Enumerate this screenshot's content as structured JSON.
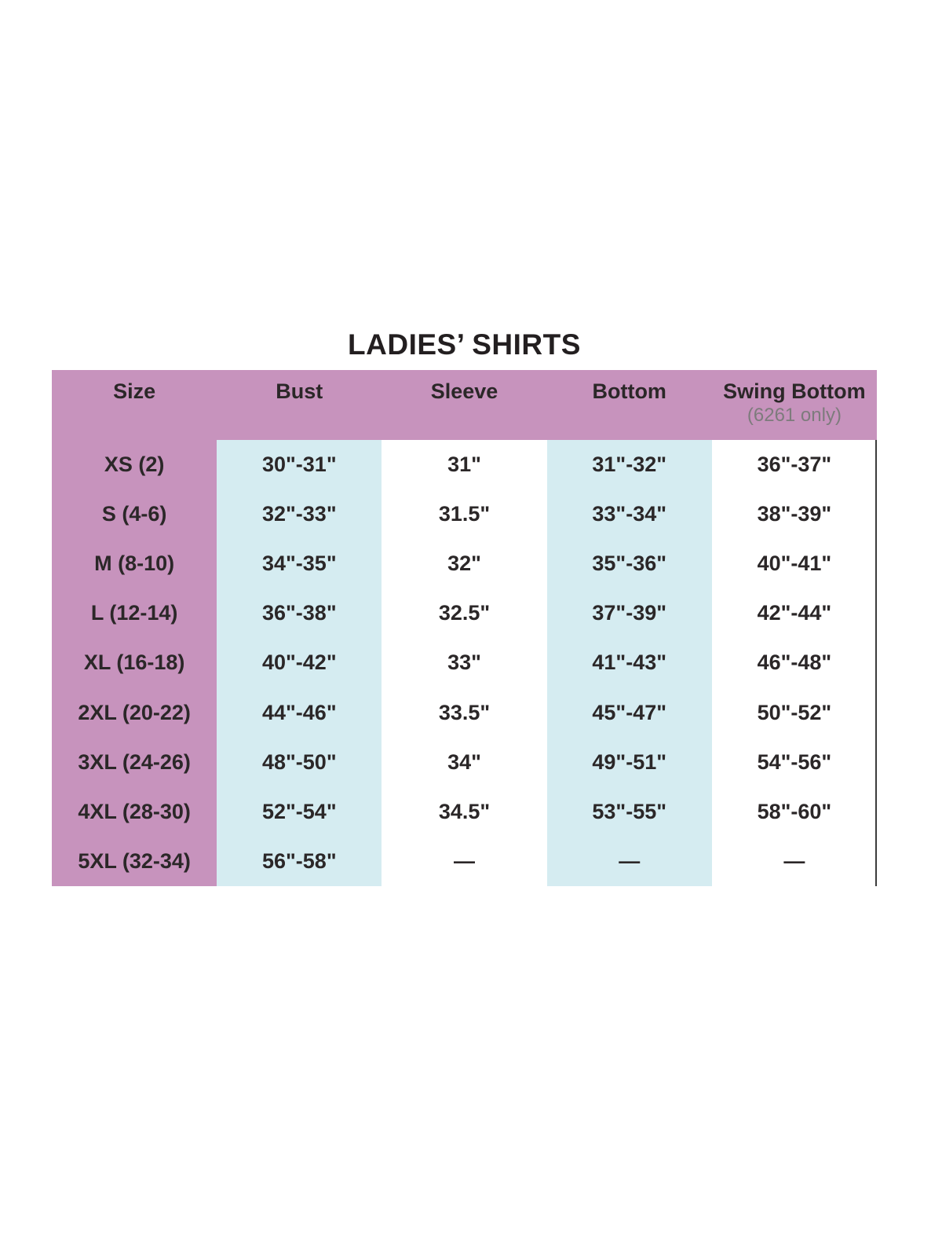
{
  "title": "LADIES’ SHIRTS",
  "chart_data": {
    "type": "table",
    "title": "LADIES’ SHIRTS",
    "columns": [
      {
        "label": "Size",
        "sublabel": ""
      },
      {
        "label": "Bust",
        "sublabel": ""
      },
      {
        "label": "Sleeve",
        "sublabel": ""
      },
      {
        "label": "Bottom",
        "sublabel": ""
      },
      {
        "label": "Swing Bottom",
        "sublabel": "(6261 only)"
      }
    ],
    "rows": [
      [
        "XS (2)",
        "30\"-31\"",
        "31\"",
        "31\"-32\"",
        "36\"-37\""
      ],
      [
        "S (4-6)",
        "32\"-33\"",
        "31.5\"",
        "33\"-34\"",
        "38\"-39\""
      ],
      [
        "M (8-10)",
        "34\"-35\"",
        "32\"",
        "35\"-36\"",
        "40\"-41\""
      ],
      [
        "L (12-14)",
        "36\"-38\"",
        "32.5\"",
        "37\"-39\"",
        "42\"-44\""
      ],
      [
        "XL (16-18)",
        "40\"-42\"",
        "33\"",
        "41\"-43\"",
        "46\"-48\""
      ],
      [
        "2XL (20-22)",
        "44\"-46\"",
        "33.5\"",
        "45\"-47\"",
        "50\"-52\""
      ],
      [
        "3XL (24-26)",
        "48\"-50\"",
        "34\"",
        "49\"-51\"",
        "54\"-56\""
      ],
      [
        "4XL (28-30)",
        "52\"-54\"",
        "34.5\"",
        "53\"-55\"",
        "58\"-60\""
      ],
      [
        "5XL (32-34)",
        "56\"-58\"",
        "—",
        "—",
        "—"
      ]
    ],
    "layout_hints": {
      "highlighted_columns": [
        "Size",
        "Bust",
        "Bottom"
      ],
      "grid": false,
      "legend": false
    }
  },
  "colors": {
    "header_bg": "#c793bd",
    "size_column_bg": "#c793bd",
    "highlight_column_bg": "#d5ecf1",
    "plain_column_bg": "#ffffff",
    "text": "#2b2728",
    "title_text": "#231f20",
    "subheader_text": "#7d7b7c",
    "right_border_line": "#3c3c3c"
  }
}
